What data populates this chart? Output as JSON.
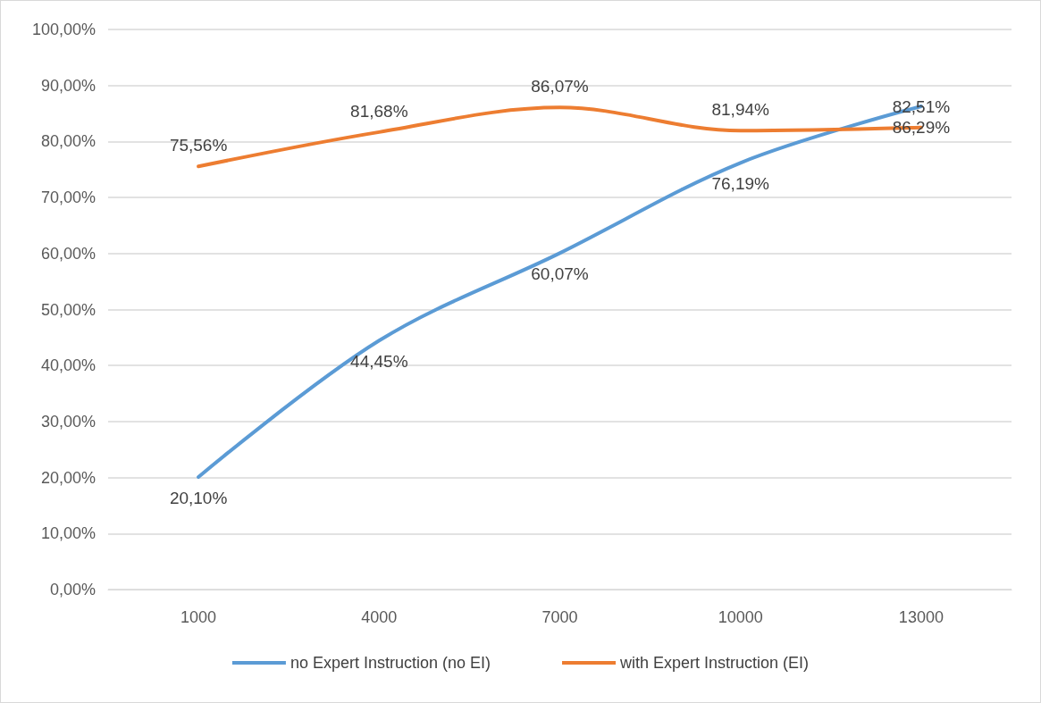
{
  "chart_data": {
    "type": "line",
    "categories": [
      "1000",
      "4000",
      "7000",
      "10000",
      "13000"
    ],
    "series": [
      {
        "name": "no Expert Instruction (no EI)",
        "color": "#5b9bd5",
        "values": [
          20.1,
          44.45,
          60.07,
          76.19,
          86.29
        ],
        "value_labels": [
          "20,10%",
          "44,45%",
          "60,07%",
          "76,19%",
          "86,29%"
        ]
      },
      {
        "name": "with Expert Instruction (EI)",
        "color": "#ed7d31",
        "values": [
          75.56,
          81.68,
          86.07,
          81.94,
          82.51
        ],
        "value_labels": [
          "75,56%",
          "81,68%",
          "86,07%",
          "81,94%",
          "82,51%"
        ]
      }
    ],
    "ylim": [
      0,
      100
    ],
    "yticks": [
      {
        "value": 0,
        "label": "0,00%"
      },
      {
        "value": 10,
        "label": "10,00%"
      },
      {
        "value": 20,
        "label": "20,00%"
      },
      {
        "value": 30,
        "label": "30,00%"
      },
      {
        "value": 40,
        "label": "40,00%"
      },
      {
        "value": 50,
        "label": "50,00%"
      },
      {
        "value": 60,
        "label": "60,00%"
      },
      {
        "value": 70,
        "label": "70,00%"
      },
      {
        "value": 80,
        "label": "80,00%"
      },
      {
        "value": 90,
        "label": "90,00%"
      },
      {
        "value": 100,
        "label": "100,00%"
      }
    ],
    "grid": "y",
    "legend": "bottom",
    "marker": "none",
    "line_style": "solid"
  }
}
